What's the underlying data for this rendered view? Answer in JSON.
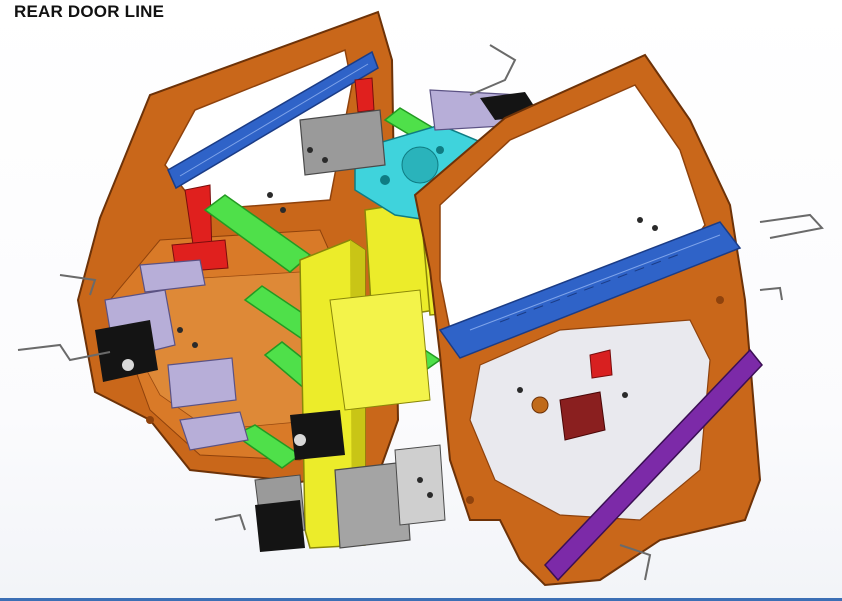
{
  "header": {
    "title": "REAR DOOR LINE"
  },
  "palette": {
    "door_panel": "#c9671a",
    "door_panel_dark": "#8f420c",
    "door_panel_light": "#e59240",
    "rail_blue": "#2f63c8",
    "rail_blue_dark": "#1b3c86",
    "fixture_green": "#4fe04a",
    "fixture_green_dark": "#239a22",
    "frame_yellow": "#ecec2a",
    "frame_yellow_dark": "#b3b010",
    "plate_cyan": "#3fd3dc",
    "bracket_red": "#e0201e",
    "clamp_lavender": "#b7aed8",
    "clamp_gray": "#9a9a9a",
    "rail_purple": "#7c2aa8",
    "cylinder_black": "#141414"
  }
}
